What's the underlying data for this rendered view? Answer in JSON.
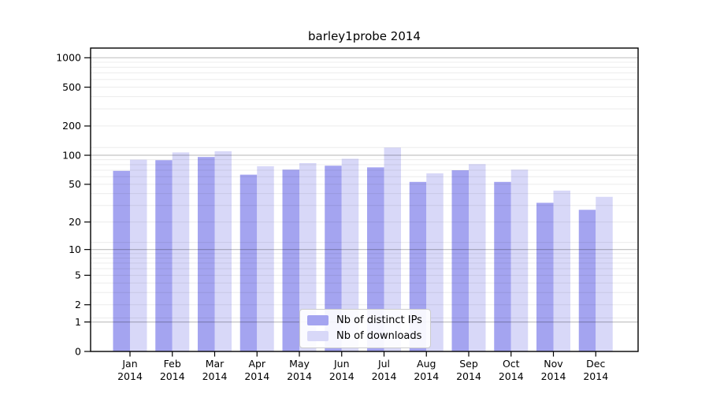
{
  "chart_data": {
    "type": "bar",
    "title": "barley1probe 2014",
    "categories": [
      "Jan",
      "Feb",
      "Mar",
      "Apr",
      "May",
      "Jun",
      "Jul",
      "Aug",
      "Sep",
      "Oct",
      "Nov",
      "Dec"
    ],
    "year_label": "2014",
    "series": [
      {
        "name": "Nb of distinct IPs",
        "color": "#a4a4f0",
        "values": [
          69,
          89,
          96,
          63,
          71,
          78,
          75,
          53,
          70,
          53,
          32,
          27
        ]
      },
      {
        "name": "Nb of downloads",
        "color": "#d8d8f8",
        "values": [
          90,
          107,
          110,
          77,
          83,
          92,
          120,
          65,
          81,
          71,
          43,
          37
        ]
      }
    ],
    "xlabel": "",
    "ylabel": "",
    "y_scale": "log1p",
    "ylim": [
      0,
      1280
    ],
    "y_tick_labels": [
      0,
      1,
      2,
      5,
      10,
      20,
      50,
      100,
      200,
      500,
      1000
    ],
    "y_major_gridlines": [
      1,
      10,
      100,
      1000
    ],
    "y_minor_factors": [
      1.2,
      2,
      3,
      4,
      5,
      6,
      7,
      8,
      9
    ],
    "grid": true,
    "legend_position": "lower center"
  },
  "colors": {
    "major_grid": "#c4c4c4",
    "minor_grid": "#ececec",
    "axis": "#000000",
    "background": "#ffffff"
  }
}
